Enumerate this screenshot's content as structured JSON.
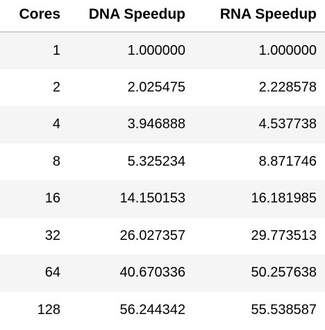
{
  "table": {
    "columns": [
      "Cores",
      "DNA Speedup",
      "RNA Speedup"
    ],
    "rows": [
      [
        "1",
        "1.000000",
        "1.000000"
      ],
      [
        "2",
        "2.025475",
        "2.228578"
      ],
      [
        "4",
        "3.946888",
        "4.537738"
      ],
      [
        "8",
        "5.325234",
        "8.871746"
      ],
      [
        "16",
        "14.150153",
        "16.181985"
      ],
      [
        "32",
        "26.027357",
        "29.773513"
      ],
      [
        "64",
        "40.670336",
        "50.257638"
      ],
      [
        "128",
        "56.244342",
        "55.538587"
      ]
    ]
  }
}
